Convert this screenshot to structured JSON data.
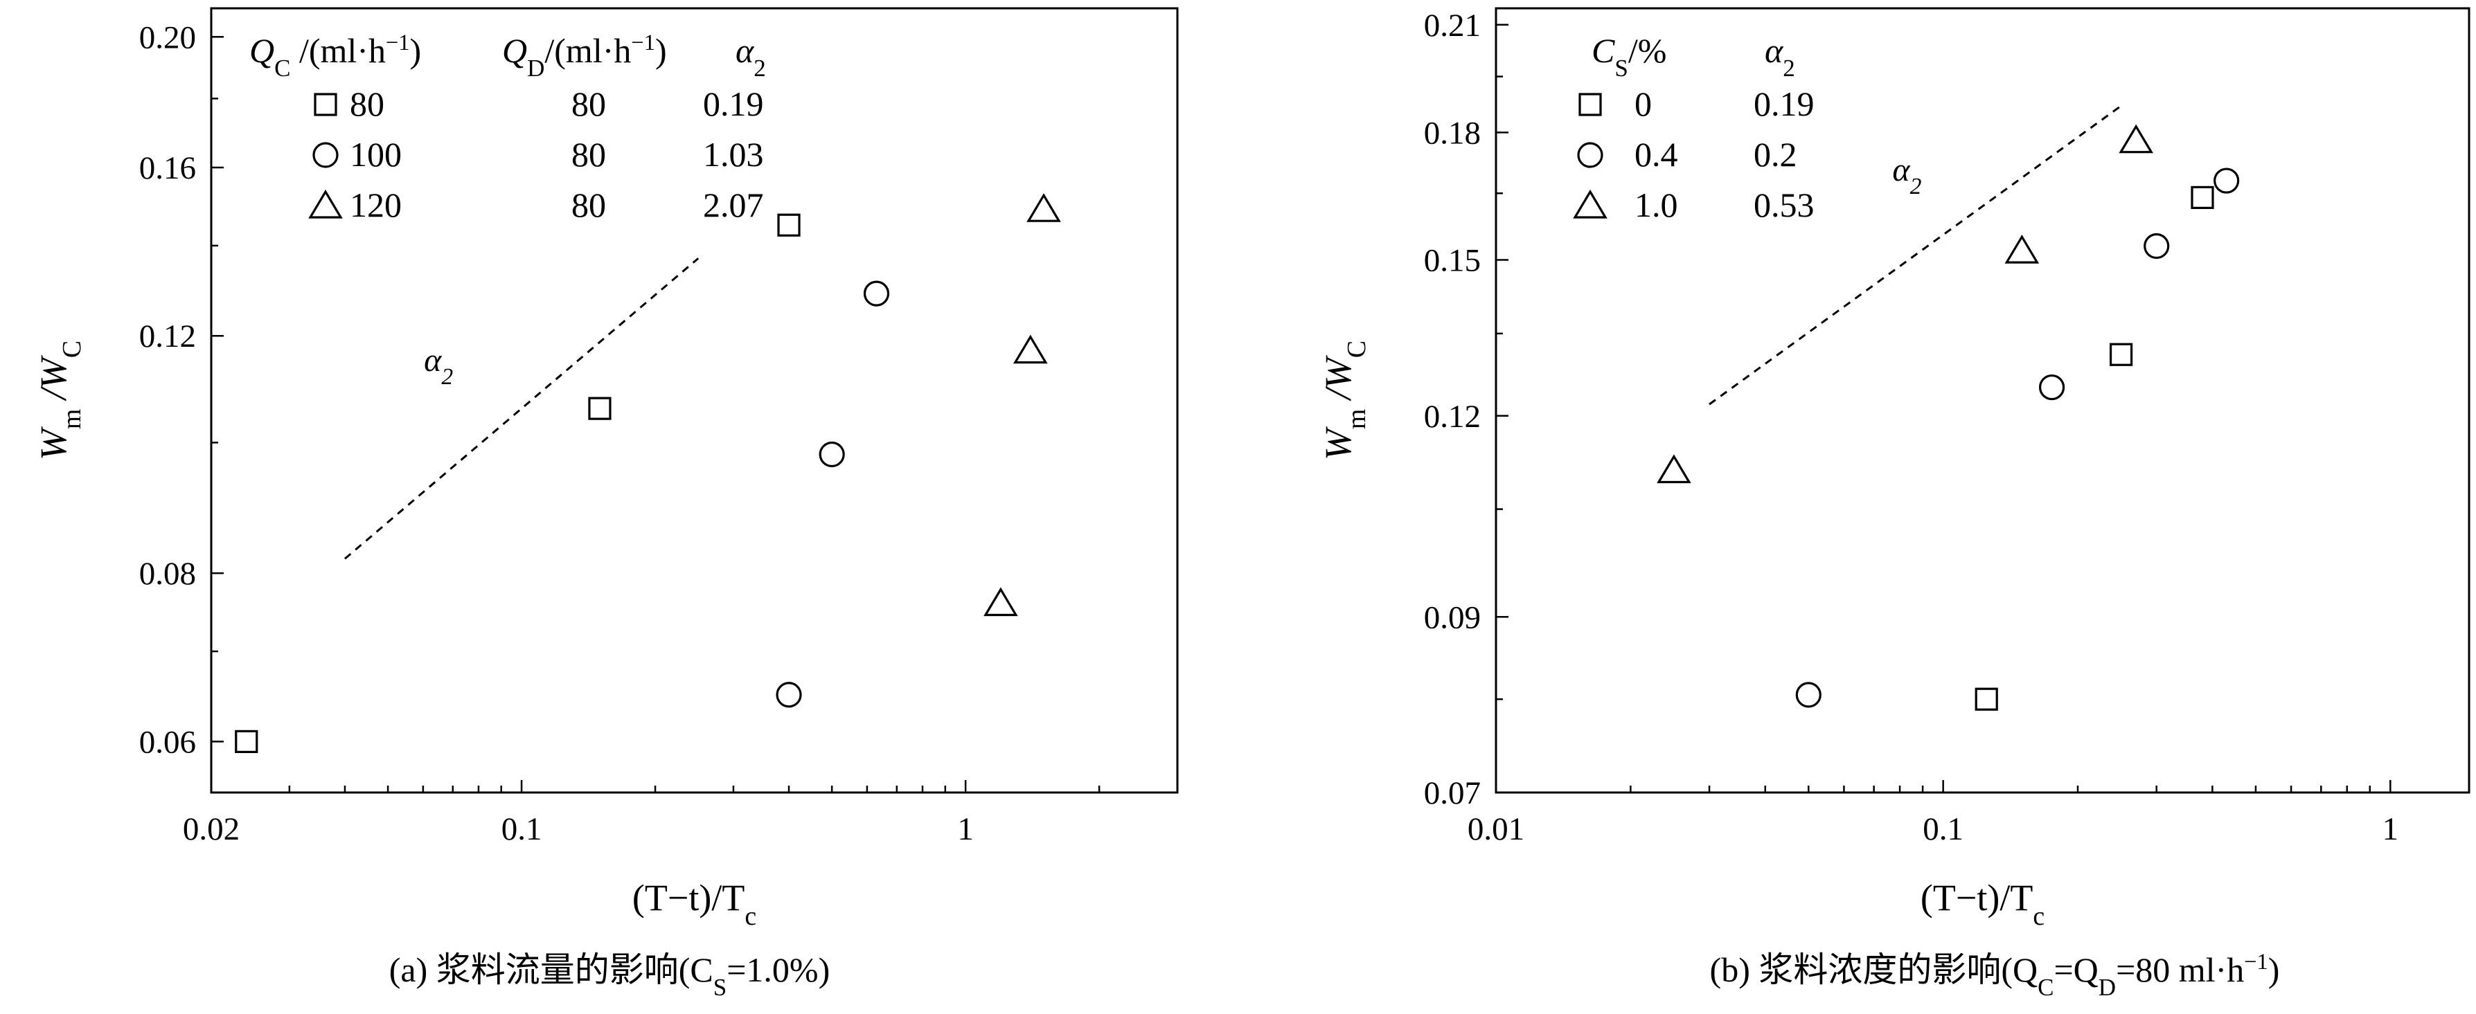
{
  "chart_data": [
    {
      "type": "scatter",
      "panel": "a",
      "caption": "(a) 浆料流量的影响(C",
      "caption_sub": "S",
      "caption_tail": "=1.0%)",
      "xlabel": "(T−t)/T",
      "xlabel_sub": "c",
      "ylabel_main": "W",
      "ylabel_sub1": "m",
      "ylabel_mid": " /W",
      "ylabel_sub2": "C",
      "x_scale": "log",
      "y_scale": "log",
      "xlim": [
        0.02,
        3.0
      ],
      "ylim": [
        0.055,
        0.21
      ],
      "xticks": [
        0.02,
        0.1,
        1
      ],
      "xtick_labels": [
        "0.02",
        "0.1",
        "1"
      ],
      "yticks": [
        0.06,
        0.08,
        0.12,
        0.16,
        0.2
      ],
      "ytick_labels": [
        "0.06",
        "0.08",
        "0.12",
        "0.16",
        "0.20"
      ],
      "legend": {
        "headers": [
          {
            "main": "Q",
            "sub": "C",
            "rest": " /(ml·h",
            "sup": "−1",
            "end": ")"
          },
          {
            "main": "Q",
            "sub": "D",
            "rest": "/(ml·h",
            "sup": "−1",
            "end": ")"
          },
          {
            "main": "α",
            "sub": "2",
            "rest": "",
            "sup": "",
            "end": ""
          }
        ],
        "rows": [
          {
            "marker": "square",
            "qc": "80",
            "qd": "80",
            "alpha2": "0.19"
          },
          {
            "marker": "circle",
            "qc": "100",
            "qd": "80",
            "alpha2": "1.03"
          },
          {
            "marker": "triangle",
            "qc": "120",
            "qd": "80",
            "alpha2": "2.07"
          }
        ]
      },
      "fit_line_label": {
        "main": "α",
        "sub": "2"
      },
      "fit_line": [
        [
          0.04,
          0.082
        ],
        [
          0.25,
          0.137
        ]
      ],
      "series": [
        {
          "marker": "square",
          "points": [
            [
              0.024,
              0.06
            ],
            [
              0.15,
              0.106
            ],
            [
              0.4,
              0.145
            ]
          ]
        },
        {
          "marker": "circle",
          "points": [
            [
              0.4,
              0.065
            ],
            [
              0.5,
              0.098
            ],
            [
              0.63,
              0.129
            ]
          ]
        },
        {
          "marker": "triangle",
          "points": [
            [
              1.2,
              0.076
            ],
            [
              1.4,
              0.117
            ],
            [
              1.5,
              0.149
            ]
          ]
        }
      ]
    },
    {
      "type": "scatter",
      "panel": "b",
      "caption": "(b) 浆料浓度的影响(Q",
      "caption_sub": "C",
      "caption_mid": "=Q",
      "caption_sub2": "D",
      "caption_tail": "=80 ml·h",
      "caption_sup": "−1",
      "caption_end": ")",
      "xlabel": "(T−t)/T",
      "xlabel_sub": "c",
      "ylabel_main": "W",
      "ylabel_sub1": "m",
      "ylabel_mid": " /W",
      "ylabel_sub2": "C",
      "x_scale": "log",
      "y_scale": "log",
      "xlim": [
        0.01,
        1.5
      ],
      "ylim": [
        0.07,
        0.215
      ],
      "xticks": [
        0.01,
        0.1,
        1
      ],
      "xtick_labels": [
        "0.01",
        "0.1",
        "1"
      ],
      "yticks": [
        0.07,
        0.09,
        0.12,
        0.15,
        0.18,
        0.21
      ],
      "ytick_labels": [
        "0.07",
        "0.09",
        "0.12",
        "0.15",
        "0.18",
        "0.21"
      ],
      "legend": {
        "headers": [
          {
            "main": "C",
            "sub": "S",
            "rest": "/%",
            "sup": "",
            "end": ""
          },
          {
            "main": "α",
            "sub": "2",
            "rest": "",
            "sup": "",
            "end": ""
          }
        ],
        "rows": [
          {
            "marker": "square",
            "cs": "0",
            "alpha2": "0.19"
          },
          {
            "marker": "circle",
            "cs": "0.4",
            "alpha2": "0.2"
          },
          {
            "marker": "triangle",
            "cs": "1.0",
            "alpha2": "0.53"
          }
        ]
      },
      "fit_line_label": {
        "main": "α",
        "sub": "2"
      },
      "fit_line": [
        [
          0.03,
          0.122
        ],
        [
          0.25,
          0.187
        ]
      ],
      "series": [
        {
          "marker": "square",
          "points": [
            [
              0.125,
              0.08
            ],
            [
              0.25,
              0.131
            ],
            [
              0.38,
              0.164
            ]
          ]
        },
        {
          "marker": "circle",
          "points": [
            [
              0.05,
              0.0805
            ],
            [
              0.175,
              0.125
            ],
            [
              0.3,
              0.153
            ],
            [
              0.43,
              0.168
            ]
          ]
        },
        {
          "marker": "triangle",
          "points": [
            [
              0.025,
              0.111
            ],
            [
              0.15,
              0.152
            ],
            [
              0.27,
              0.178
            ]
          ]
        }
      ]
    }
  ]
}
